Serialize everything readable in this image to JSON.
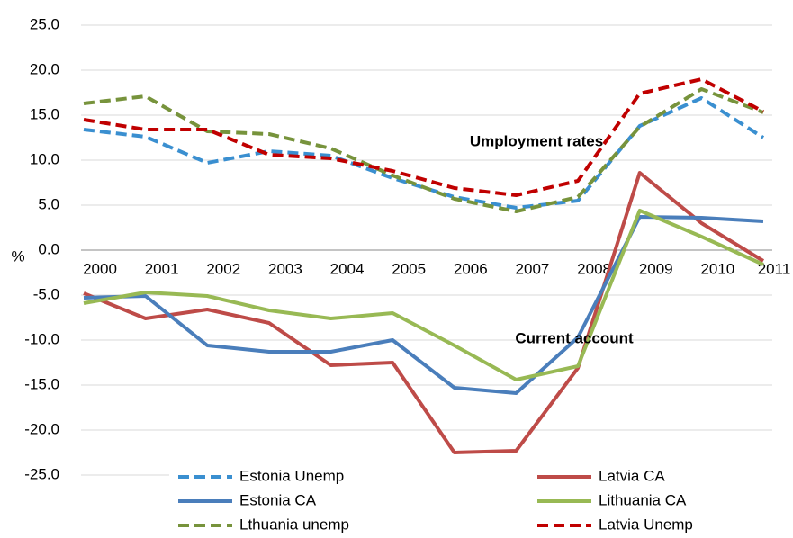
{
  "chart_data": {
    "type": "line",
    "y_label": "%",
    "annotations": [
      "Umployment rates",
      "Current account"
    ],
    "categories": [
      "2000",
      "2001",
      "2002",
      "2003",
      "2004",
      "2005",
      "2006",
      "2007",
      "2008",
      "2009",
      "2010",
      "2011"
    ],
    "ylim": [
      -25,
      25
    ],
    "yticks": [
      {
        "value": -25,
        "label": "-25.0"
      },
      {
        "value": -20,
        "label": "-20.0"
      },
      {
        "value": -15,
        "label": "-15.0"
      },
      {
        "value": -10,
        "label": "-10.0"
      },
      {
        "value": -5,
        "label": "-5.0"
      },
      {
        "value": 0,
        "label": "0.0"
      },
      {
        "value": 5,
        "label": "5.0"
      },
      {
        "value": 10,
        "label": "10.0"
      },
      {
        "value": 15,
        "label": "15.0"
      },
      {
        "value": 20,
        "label": "20.0"
      },
      {
        "value": 25,
        "label": "25.0"
      }
    ],
    "grid": true,
    "legend": "bottom",
    "series": [
      {
        "name": "Estonia Unemp",
        "color": "#3a8fd0",
        "dashed": true,
        "values": [
          13.4,
          12.6,
          9.7,
          11.0,
          10.5,
          8.0,
          5.9,
          4.7,
          5.5,
          13.8,
          16.9,
          12.5
        ]
      },
      {
        "name": "Latvia CA",
        "color": "#be4b48",
        "dashed": false,
        "values": [
          -4.8,
          -7.6,
          -6.6,
          -8.1,
          -12.8,
          -12.5,
          -22.5,
          -22.3,
          -13.1,
          8.6,
          3.0,
          -1.2
        ]
      },
      {
        "name": "Estonia CA",
        "color": "#4a7ebb",
        "dashed": false,
        "values": [
          -5.3,
          -5.1,
          -10.6,
          -11.3,
          -11.3,
          -10.0,
          -15.3,
          -15.9,
          -9.7,
          3.7,
          3.6,
          3.2
        ]
      },
      {
        "name": "Lithuania CA",
        "color": "#98b954",
        "dashed": false,
        "values": [
          -5.9,
          -4.7,
          -5.1,
          -6.7,
          -7.6,
          -7.0,
          -10.6,
          -14.4,
          -12.9,
          4.4,
          1.5,
          -1.6
        ]
      },
      {
        "name": "Lthuania unemp",
        "color": "#77933c",
        "dashed": true,
        "values": [
          16.3,
          17.1,
          13.2,
          12.9,
          11.3,
          8.3,
          5.7,
          4.3,
          5.9,
          13.7,
          17.9,
          15.3
        ]
      },
      {
        "name": "Latvia Unemp",
        "color": "#c00000",
        "dashed": true,
        "values": [
          14.5,
          13.4,
          13.4,
          10.6,
          10.2,
          8.8,
          6.9,
          6.1,
          7.7,
          17.4,
          19.0,
          15.4
        ]
      }
    ]
  }
}
